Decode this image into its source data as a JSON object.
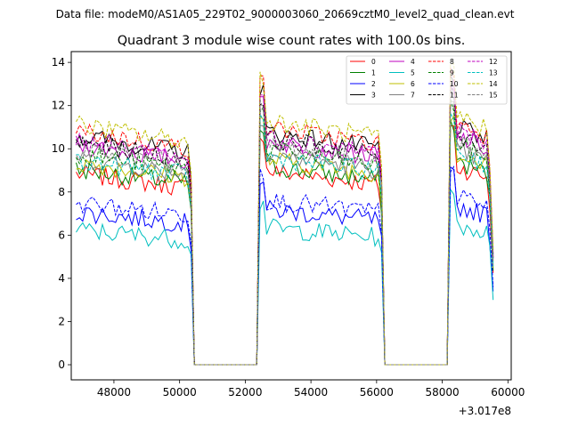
{
  "suptitle": "Data file: modeM0/AS1A05_229T02_9000003060_20669cztM0_level2_quad_clean.evt",
  "chart_data": {
    "type": "line",
    "title": "Quadrant 3 module wise count rates with 100.0s bins.",
    "xlabel": "",
    "ylabel": "",
    "x_offset_label": "+3.017e8",
    "xlim": [
      46700,
      60100
    ],
    "ylim": [
      -0.7,
      14.5
    ],
    "xticks": [
      48000,
      50000,
      52000,
      54000,
      56000,
      58000,
      60000
    ],
    "xtick_labels": [
      "48000",
      "50000",
      "52000",
      "54000",
      "56000",
      "58000",
      "60000"
    ],
    "yticks": [
      0,
      2,
      4,
      6,
      8,
      10,
      12,
      14
    ],
    "ytick_labels": [
      "0",
      "2",
      "4",
      "6",
      "8",
      "10",
      "12",
      "14"
    ],
    "legend_position": "upper right",
    "segments": [
      {
        "start": 46850,
        "end": 50450
      },
      {
        "start": 52450,
        "end": 56250
      },
      {
        "start": 58250,
        "end": 59550
      }
    ],
    "gap_value": 0,
    "series": [
      {
        "name": "0",
        "color": "#ff0000",
        "dash": "solid",
        "level": 8.5
      },
      {
        "name": "1",
        "color": "#008000",
        "dash": "solid",
        "level": 8.7
      },
      {
        "name": "2",
        "color": "#0000ff",
        "dash": "solid",
        "level": 6.8
      },
      {
        "name": "3",
        "color": "#000000",
        "dash": "solid",
        "level": 10.2
      },
      {
        "name": "4",
        "color": "#bf00bf",
        "dash": "solid",
        "level": 9.8
      },
      {
        "name": "5",
        "color": "#00bfbf",
        "dash": "solid",
        "level": 6.0
      },
      {
        "name": "6",
        "color": "#bfbf00",
        "dash": "solid",
        "level": 9.0
      },
      {
        "name": "7",
        "color": "#808080",
        "dash": "solid",
        "level": 9.2
      },
      {
        "name": "8",
        "color": "#ff0000",
        "dash": "dashed",
        "level": 10.4
      },
      {
        "name": "9",
        "color": "#008000",
        "dash": "dashed",
        "level": 9.4
      },
      {
        "name": "10",
        "color": "#0000ff",
        "dash": "dashed",
        "level": 7.2
      },
      {
        "name": "11",
        "color": "#000000",
        "dash": "dashed",
        "level": 9.9
      },
      {
        "name": "12",
        "color": "#bf00bf",
        "dash": "dashed",
        "level": 10.0
      },
      {
        "name": "13",
        "color": "#00bfbf",
        "dash": "dashed",
        "level": 9.1
      },
      {
        "name": "14",
        "color": "#bfbf00",
        "dash": "dashed",
        "level": 10.7
      },
      {
        "name": "15",
        "color": "#808080",
        "dash": "dashed",
        "level": 9.6
      }
    ]
  }
}
